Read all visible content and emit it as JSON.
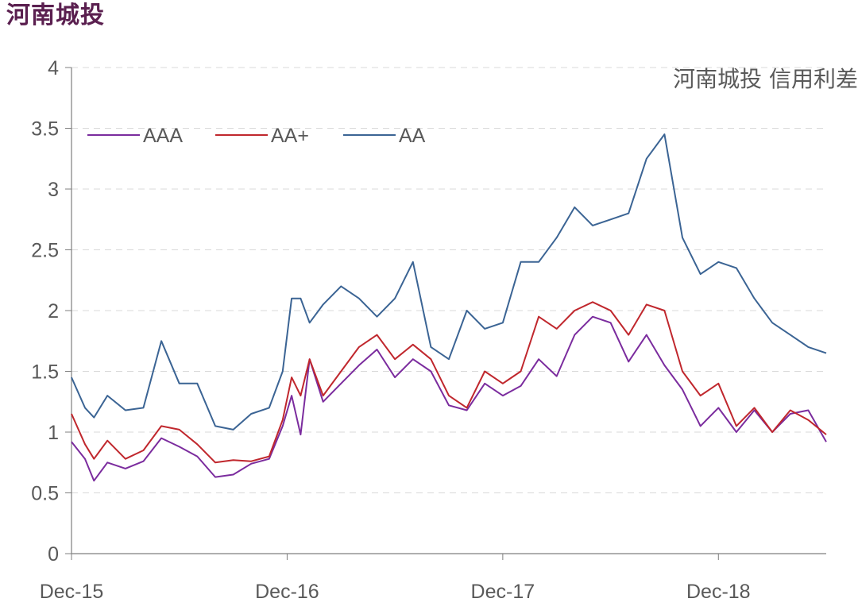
{
  "page_title": "河南城投",
  "colors": {
    "AAA": "#7b2c9e",
    "AA+": "#c0272d",
    "AA": "#3b6494",
    "axis": "#7f7f7f",
    "grid": "#d9d9d9",
    "title": "#5a1f4f"
  },
  "chart_data": {
    "type": "line",
    "title": "河南城投 信用利差",
    "xlabel": "",
    "ylabel": "",
    "ylim": [
      0,
      4
    ],
    "yticks": [
      "0",
      "0.5",
      "1",
      "1.5",
      "2",
      "2.5",
      "3",
      "3.5",
      "4"
    ],
    "xlim": [
      "2015-12",
      "2019-06"
    ],
    "xticks": [
      {
        "date": "2015-12",
        "label": "Dec-15"
      },
      {
        "date": "2016-12",
        "label": "Dec-16"
      },
      {
        "date": "2017-12",
        "label": "Dec-17"
      },
      {
        "date": "2018-12",
        "label": "Dec-18"
      }
    ],
    "grid": "horizontal dashed",
    "legend": "top-left",
    "series": [
      {
        "name": "AAA",
        "points": [
          [
            "2015-12",
            0.92
          ],
          [
            "2016-01",
            0.78
          ],
          [
            "2016-01",
            0.6
          ],
          [
            "2016-02",
            0.75
          ],
          [
            "2016-03",
            0.7
          ],
          [
            "2016-04",
            0.76
          ],
          [
            "2016-05",
            0.95
          ],
          [
            "2016-06",
            0.88
          ],
          [
            "2016-07",
            0.8
          ],
          [
            "2016-08",
            0.63
          ],
          [
            "2016-09",
            0.65
          ],
          [
            "2016-10",
            0.74
          ],
          [
            "2016-11",
            0.78
          ],
          [
            "2016-12",
            1.05
          ],
          [
            "2016-12",
            1.3
          ],
          [
            "2017-01",
            0.98
          ],
          [
            "2017-01",
            1.6
          ],
          [
            "2017-02",
            1.25
          ],
          [
            "2017-03",
            1.4
          ],
          [
            "2017-04",
            1.55
          ],
          [
            "2017-05",
            1.68
          ],
          [
            "2017-06",
            1.45
          ],
          [
            "2017-07",
            1.6
          ],
          [
            "2017-08",
            1.5
          ],
          [
            "2017-09",
            1.22
          ],
          [
            "2017-10",
            1.18
          ],
          [
            "2017-11",
            1.4
          ],
          [
            "2017-12",
            1.3
          ],
          [
            "2018-01",
            1.38
          ],
          [
            "2018-02",
            1.6
          ],
          [
            "2018-03",
            1.46
          ],
          [
            "2018-04",
            1.8
          ],
          [
            "2018-05",
            1.95
          ],
          [
            "2018-06",
            1.9
          ],
          [
            "2018-07",
            1.58
          ],
          [
            "2018-08",
            1.8
          ],
          [
            "2018-09",
            1.55
          ],
          [
            "2018-10",
            1.35
          ],
          [
            "2018-11",
            1.05
          ],
          [
            "2018-12",
            1.2
          ],
          [
            "2019-01",
            1.0
          ],
          [
            "2019-02",
            1.18
          ],
          [
            "2019-03",
            1.0
          ],
          [
            "2019-04",
            1.15
          ],
          [
            "2019-05",
            1.18
          ],
          [
            "2019-06",
            0.92
          ]
        ]
      },
      {
        "name": "AA+",
        "points": [
          [
            "2015-12",
            1.15
          ],
          [
            "2016-01",
            0.9
          ],
          [
            "2016-01",
            0.78
          ],
          [
            "2016-02",
            0.93
          ],
          [
            "2016-03",
            0.78
          ],
          [
            "2016-04",
            0.85
          ],
          [
            "2016-05",
            1.05
          ],
          [
            "2016-06",
            1.02
          ],
          [
            "2016-07",
            0.9
          ],
          [
            "2016-08",
            0.75
          ],
          [
            "2016-09",
            0.77
          ],
          [
            "2016-10",
            0.76
          ],
          [
            "2016-11",
            0.8
          ],
          [
            "2016-12",
            1.1
          ],
          [
            "2016-12",
            1.45
          ],
          [
            "2017-01",
            1.3
          ],
          [
            "2017-01",
            1.6
          ],
          [
            "2017-02",
            1.3
          ],
          [
            "2017-03",
            1.5
          ],
          [
            "2017-04",
            1.7
          ],
          [
            "2017-05",
            1.8
          ],
          [
            "2017-06",
            1.6
          ],
          [
            "2017-07",
            1.72
          ],
          [
            "2017-08",
            1.6
          ],
          [
            "2017-09",
            1.3
          ],
          [
            "2017-10",
            1.2
          ],
          [
            "2017-11",
            1.5
          ],
          [
            "2017-12",
            1.4
          ],
          [
            "2018-01",
            1.5
          ],
          [
            "2018-02",
            1.95
          ],
          [
            "2018-03",
            1.85
          ],
          [
            "2018-04",
            2.0
          ],
          [
            "2018-05",
            2.07
          ],
          [
            "2018-06",
            2.0
          ],
          [
            "2018-07",
            1.8
          ],
          [
            "2018-08",
            2.05
          ],
          [
            "2018-09",
            2.0
          ],
          [
            "2018-10",
            1.5
          ],
          [
            "2018-11",
            1.3
          ],
          [
            "2018-12",
            1.4
          ],
          [
            "2019-01",
            1.05
          ],
          [
            "2019-02",
            1.2
          ],
          [
            "2019-03",
            1.0
          ],
          [
            "2019-04",
            1.18
          ],
          [
            "2019-05",
            1.1
          ],
          [
            "2019-06",
            0.98
          ]
        ]
      },
      {
        "name": "AA",
        "points": [
          [
            "2015-12",
            1.45
          ],
          [
            "2016-01",
            1.2
          ],
          [
            "2016-01",
            1.12
          ],
          [
            "2016-02",
            1.3
          ],
          [
            "2016-03",
            1.18
          ],
          [
            "2016-04",
            1.2
          ],
          [
            "2016-05",
            1.75
          ],
          [
            "2016-06",
            1.4
          ],
          [
            "2016-07",
            1.4
          ],
          [
            "2016-08",
            1.05
          ],
          [
            "2016-09",
            1.02
          ],
          [
            "2016-10",
            1.15
          ],
          [
            "2016-11",
            1.2
          ],
          [
            "2016-12",
            1.5
          ],
          [
            "2016-12",
            2.1
          ],
          [
            "2017-01",
            2.1
          ],
          [
            "2017-01",
            1.9
          ],
          [
            "2017-02",
            2.05
          ],
          [
            "2017-03",
            2.2
          ],
          [
            "2017-04",
            2.1
          ],
          [
            "2017-05",
            1.95
          ],
          [
            "2017-06",
            2.1
          ],
          [
            "2017-07",
            2.4
          ],
          [
            "2017-08",
            1.7
          ],
          [
            "2017-09",
            1.6
          ],
          [
            "2017-10",
            2.0
          ],
          [
            "2017-11",
            1.85
          ],
          [
            "2017-12",
            1.9
          ],
          [
            "2018-01",
            2.4
          ],
          [
            "2018-02",
            2.4
          ],
          [
            "2018-03",
            2.6
          ],
          [
            "2018-04",
            2.85
          ],
          [
            "2018-05",
            2.7
          ],
          [
            "2018-06",
            2.75
          ],
          [
            "2018-07",
            2.8
          ],
          [
            "2018-08",
            3.25
          ],
          [
            "2018-09",
            3.45
          ],
          [
            "2018-10",
            2.6
          ],
          [
            "2018-11",
            2.3
          ],
          [
            "2018-12",
            2.4
          ],
          [
            "2019-01",
            2.35
          ],
          [
            "2019-02",
            2.1
          ],
          [
            "2019-03",
            1.9
          ],
          [
            "2019-04",
            1.8
          ],
          [
            "2019-05",
            1.7
          ],
          [
            "2019-06",
            1.65
          ]
        ]
      }
    ]
  }
}
